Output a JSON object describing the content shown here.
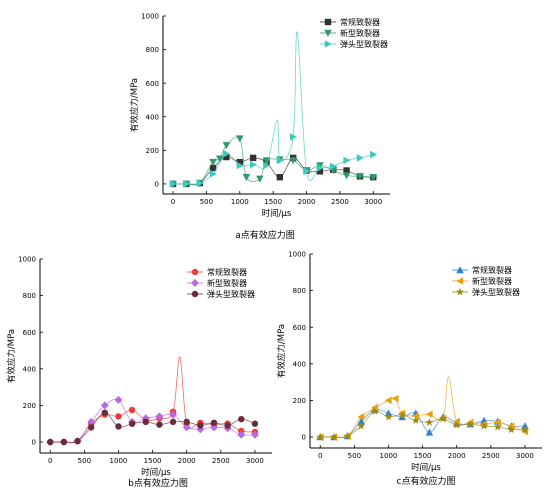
{
  "chart_data": [
    {
      "type": "line",
      "panel_caption": "a点有效应力图",
      "xlabel": "时间/μs",
      "ylabel": "有效应力/MPa",
      "xlim": [
        -150,
        3250
      ],
      "ylim": [
        -60,
        1000
      ],
      "xticks": [
        0,
        500,
        1000,
        1500,
        2000,
        2500,
        3000
      ],
      "yticks": [
        0,
        200,
        400,
        600,
        800,
        1000
      ],
      "legend_position": "top-right",
      "series": [
        {
          "name": "常规致裂器",
          "color": "#333333",
          "marker": "square",
          "x": [
            0,
            200,
            400,
            600,
            800,
            1000,
            1200,
            1400,
            1600,
            1800,
            2000,
            2200,
            2400,
            2600,
            2800,
            3000
          ],
          "y": [
            0,
            0,
            5,
            95,
            160,
            130,
            155,
            130,
            40,
            155,
            80,
            75,
            85,
            80,
            45,
            40
          ]
        },
        {
          "name": "新型致裂器",
          "color": "#2e9c6a",
          "marker": "triangle-down",
          "x": [
            0,
            200,
            400,
            600,
            700,
            800,
            1000,
            1100,
            1300,
            1400,
            1600,
            1800,
            2000,
            2200,
            2400,
            2600,
            2800,
            3000
          ],
          "y": [
            0,
            0,
            5,
            130,
            150,
            230,
            270,
            40,
            30,
            140,
            145,
            140,
            80,
            110,
            80,
            50,
            45,
            40
          ]
        },
        {
          "name": "弹头型致裂器",
          "color": "#3ec8c0",
          "marker": "triangle-right",
          "x": [
            0,
            200,
            400,
            600,
            800,
            1000,
            1200,
            1400,
            1600,
            1800,
            2000,
            2200,
            2400,
            2600,
            2800,
            3000
          ],
          "y": [
            0,
            0,
            5,
            60,
            180,
            110,
            115,
            110,
            140,
            280,
            75,
            95,
            105,
            140,
            155,
            175
          ]
        }
      ],
      "spikes": [
        {
          "series": "弹头型致裂器",
          "x": 1860,
          "y": 905
        },
        {
          "series": "弹头型致裂器",
          "x": 1560,
          "y": 380
        }
      ]
    },
    {
      "type": "line",
      "panel_caption": "b点有效应力图",
      "xlabel": "时间/μs",
      "ylabel": "有效应力/MPa",
      "xlim": [
        -150,
        3250
      ],
      "ylim": [
        -60,
        1000
      ],
      "xticks": [
        0,
        500,
        1000,
        1500,
        2000,
        2500,
        3000
      ],
      "yticks": [
        0,
        200,
        400,
        600,
        800,
        1000
      ],
      "legend_position": "top-right",
      "series": [
        {
          "name": "常规致裂器",
          "color": "#ee3a3a",
          "marker": "circle",
          "x": [
            0,
            200,
            400,
            600,
            800,
            1000,
            1200,
            1400,
            1600,
            1800,
            2000,
            2200,
            2400,
            2600,
            2800,
            3000
          ],
          "y": [
            0,
            0,
            5,
            100,
            150,
            140,
            175,
            120,
            130,
            165,
            100,
            105,
            95,
            100,
            60,
            55
          ]
        },
        {
          "name": "新型致裂器",
          "color": "#b86ae0",
          "marker": "diamond",
          "x": [
            0,
            200,
            400,
            600,
            800,
            1000,
            1200,
            1400,
            1600,
            1800,
            2000,
            2200,
            2400,
            2600,
            2800,
            3000
          ],
          "y": [
            0,
            0,
            5,
            110,
            200,
            230,
            110,
            130,
            140,
            150,
            80,
            70,
            80,
            75,
            40,
            40
          ]
        },
        {
          "name": "弹头型致裂器",
          "color": "#6b2b3a",
          "marker": "circle",
          "x": [
            0,
            200,
            400,
            600,
            800,
            1000,
            1200,
            1400,
            1600,
            1800,
            2000,
            2200,
            2400,
            2600,
            2800,
            3000
          ],
          "y": [
            0,
            0,
            5,
            80,
            160,
            85,
            100,
            110,
            95,
            110,
            110,
            90,
            105,
            90,
            125,
            100
          ]
        }
      ],
      "spikes": [
        {
          "series": "常规致裂器",
          "x": 1900,
          "y": 465
        }
      ]
    },
    {
      "type": "line",
      "panel_caption": "c点有效应力图",
      "xlabel": "时间/μs",
      "ylabel": "有效应力/MPa",
      "xlim": [
        -150,
        3250
      ],
      "ylim": [
        -60,
        1000
      ],
      "xticks": [
        0,
        500,
        1000,
        1500,
        2000,
        2500,
        3000
      ],
      "yticks": [
        0,
        200,
        400,
        600,
        800,
        1000
      ],
      "legend_position": "top-right",
      "series": [
        {
          "name": "常规致裂器",
          "color": "#2f7fd6",
          "marker": "triangle-up",
          "x": [
            0,
            200,
            400,
            600,
            800,
            1000,
            1200,
            1400,
            1600,
            1800,
            2000,
            2200,
            2400,
            2600,
            2800,
            3000
          ],
          "y": [
            0,
            0,
            5,
            85,
            150,
            130,
            110,
            130,
            25,
            110,
            75,
            70,
            90,
            85,
            60,
            60
          ]
        },
        {
          "name": "新型致裂器",
          "color": "#e8a20c",
          "marker": "triangle-left",
          "x": [
            0,
            200,
            400,
            600,
            800,
            1000,
            1100,
            1200,
            1400,
            1600,
            1800,
            2000,
            2200,
            2400,
            2600,
            2800,
            3000
          ],
          "y": [
            0,
            0,
            5,
            110,
            160,
            200,
            210,
            130,
            115,
            125,
            100,
            85,
            80,
            70,
            80,
            60,
            30
          ]
        },
        {
          "name": "弹头型致裂器",
          "color": "#9c8a10",
          "marker": "star",
          "x": [
            0,
            200,
            400,
            600,
            800,
            1000,
            1200,
            1400,
            1600,
            1800,
            2000,
            2200,
            2400,
            2600,
            2800,
            3000
          ],
          "y": [
            0,
            0,
            5,
            60,
            140,
            110,
            120,
            90,
            80,
            100,
            65,
            70,
            60,
            55,
            40,
            40
          ]
        }
      ],
      "spikes": [
        {
          "series": "新型致裂器",
          "x": 1880,
          "y": 330
        }
      ]
    }
  ]
}
